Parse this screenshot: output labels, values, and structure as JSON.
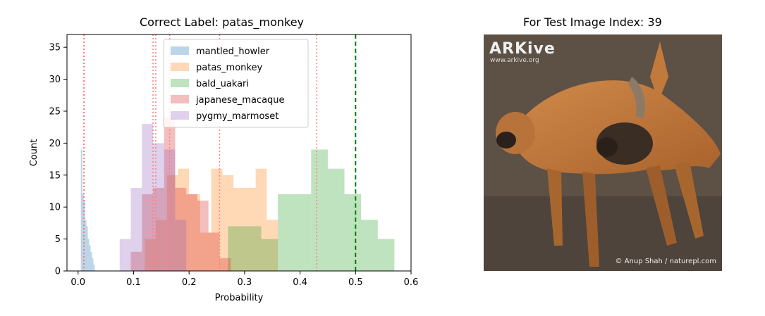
{
  "left_title": "Correct Label: patas_monkey",
  "right_title": "For Test Image Index: 39",
  "photo": {
    "logo": "ARKive",
    "url": "www.arkive.org",
    "credit": "© Anup Shah / naturepl.com"
  },
  "chart_data": {
    "type": "histogram",
    "title": "Correct Label: patas_monkey",
    "xlabel": "Probability",
    "ylabel": "Count",
    "xlim": [
      -0.02,
      0.6
    ],
    "ylim": [
      0,
      37
    ],
    "xticks": [
      "0.0",
      "0.1",
      "0.2",
      "0.3",
      "0.4",
      "0.5",
      "0.6"
    ],
    "yticks": [
      "0",
      "5",
      "10",
      "15",
      "20",
      "25",
      "30",
      "35"
    ],
    "legend_position": "top-center",
    "threshold": {
      "x": 0.5,
      "style": "dashed",
      "color": "#008000"
    },
    "series": [
      {
        "name": "mantled_howler",
        "color": "#1f77b4",
        "edges": [
          0.005,
          0.0075,
          0.01,
          0.0125,
          0.015,
          0.0175,
          0.02,
          0.0225,
          0.025,
          0.0275,
          0.03
        ],
        "counts": [
          19,
          12,
          11,
          8,
          7,
          5,
          4,
          3,
          2,
          1
        ],
        "vlines": [
          0.011
        ]
      },
      {
        "name": "patas_monkey",
        "color": "#ff7f0e",
        "edges": [
          0.12,
          0.14,
          0.16,
          0.18,
          0.2,
          0.22,
          0.24,
          0.26,
          0.28,
          0.3,
          0.32,
          0.34,
          0.36
        ],
        "counts": [
          5,
          8,
          15,
          16,
          12,
          6,
          16,
          15,
          13,
          13,
          16,
          8
        ],
        "vlines": [
          0.14,
          0.255
        ]
      },
      {
        "name": "bald_uakari",
        "color": "#2ca02c",
        "edges": [
          0.27,
          0.3,
          0.33,
          0.36,
          0.39,
          0.42,
          0.45,
          0.48,
          0.51,
          0.54,
          0.57
        ],
        "counts": [
          7,
          7,
          5,
          12,
          12,
          19,
          16,
          12,
          8,
          5
        ],
        "vlines": [
          0.43
        ]
      },
      {
        "name": "japanese_macaque",
        "color": "#d62728",
        "edges": [
          0.095,
          0.115,
          0.135,
          0.155,
          0.175,
          0.195,
          0.215,
          0.235,
          0.255,
          0.275
        ],
        "counts": [
          3,
          12,
          13,
          24,
          13,
          12,
          11,
          6,
          2
        ],
        "vlines": [
          0.165,
          0.01
        ]
      },
      {
        "name": "pygmy_marmoset",
        "color": "#9467bd",
        "edges": [
          0.075,
          0.095,
          0.115,
          0.135,
          0.155,
          0.175,
          0.195
        ],
        "counts": [
          5,
          13,
          23,
          20,
          19,
          8
        ],
        "vlines": [
          0.135
        ]
      }
    ]
  }
}
